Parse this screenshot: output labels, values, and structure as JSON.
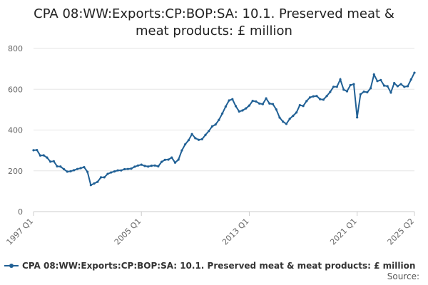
{
  "chart_data": {
    "type": "line",
    "title_lines": [
      "CPA 08:WW:Exports:CP:BOP:SA: 10.1. Preserved meat &",
      "meat products: £ million"
    ],
    "xlabel": "",
    "ylabel": "",
    "ylim": [
      0,
      800
    ],
    "yticks": [
      0,
      200,
      400,
      600,
      800
    ],
    "xtick_labels": [
      "1997 Q1",
      "2005 Q1",
      "2013 Q1",
      "2021 Q1",
      "2025 Q2"
    ],
    "grid": "horizontal",
    "legend_position": "bottom",
    "x_start": "1997 Q1",
    "x_end": "2025 Q2",
    "series": [
      {
        "name": "CPA 08:WW:Exports:CP:BOP:SA: 10.1. Preserved meat & meat products: £ million",
        "color": "#206095",
        "values": [
          301,
          302,
          275,
          276,
          265,
          245,
          247,
          222,
          221,
          208,
          196,
          198,
          203,
          209,
          213,
          218,
          195,
          130,
          138,
          146,
          168,
          168,
          185,
          192,
          197,
          202,
          202,
          208,
          209,
          211,
          220,
          226,
          230,
          224,
          221,
          225,
          226,
          222,
          244,
          254,
          255,
          265,
          240,
          255,
          300,
          330,
          350,
          380,
          360,
          352,
          355,
          376,
          395,
          418,
          427,
          450,
          481,
          515,
          545,
          551,
          517,
          491,
          496,
          506,
          520,
          543,
          540,
          530,
          527,
          555,
          530,
          527,
          501,
          461,
          441,
          430,
          455,
          470,
          486,
          522,
          518,
          542,
          560,
          565,
          567,
          551,
          549,
          567,
          587,
          612,
          612,
          648,
          598,
          590,
          620,
          625,
          462,
          575,
          588,
          585,
          605,
          672,
          640,
          645,
          618,
          615,
          584,
          630,
          615,
          625,
          612,
          615,
          648,
          681
        ]
      }
    ]
  },
  "legend": {
    "label": "CPA 08:WW:Exports:CP:BOP:SA: 10.1. Preserved meat & meat products: £ million"
  },
  "source": {
    "label": "Source:"
  }
}
